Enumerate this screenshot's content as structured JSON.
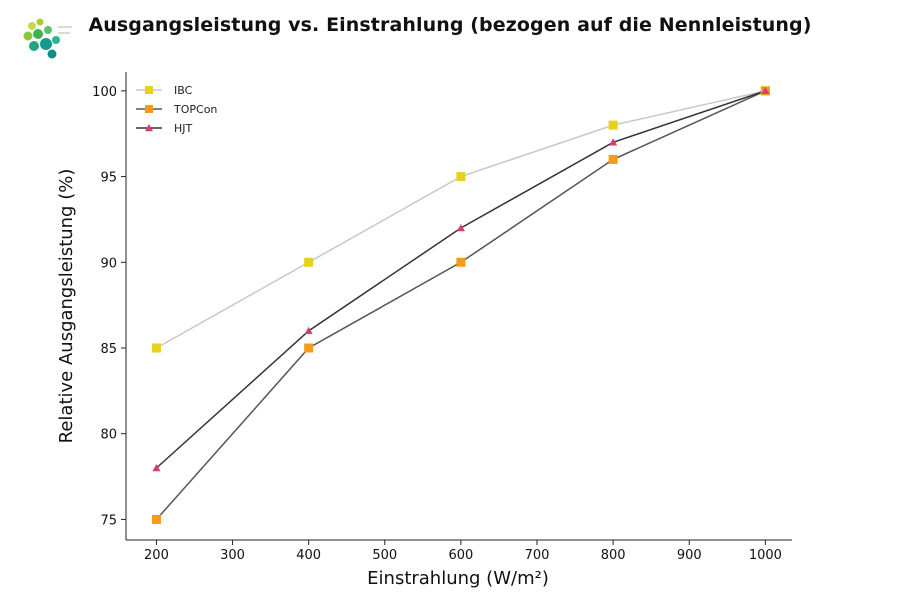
{
  "chart_data": {
    "type": "line",
    "title": "Ausgangsleistung vs. Einstrahlung (bezogen auf die Nennleistung)",
    "xlabel": "Einstrahlung (W/m²)",
    "ylabel": "Relative Ausgangsleistung (%)",
    "x": [
      200,
      400,
      600,
      800,
      1000
    ],
    "x_ticks": [
      200,
      300,
      400,
      500,
      600,
      700,
      800,
      900,
      1000
    ],
    "y_ticks": [
      75,
      80,
      85,
      90,
      95,
      100
    ],
    "xlim": [
      160,
      1035
    ],
    "ylim": [
      73.8,
      101.1
    ],
    "grid": false,
    "legend_position": "top-left",
    "series": [
      {
        "name": "IBC",
        "values": [
          85,
          90,
          95,
          98,
          100
        ],
        "color": "#c8c8c8",
        "marker_color": "#e6d21e",
        "marker": "square"
      },
      {
        "name": "TOPCon",
        "values": [
          75,
          85,
          90,
          96,
          100
        ],
        "color": "#555555",
        "marker_color": "#f59a1c",
        "marker": "square"
      },
      {
        "name": "HJT",
        "values": [
          78,
          86,
          92,
          97,
          100
        ],
        "color": "#333333",
        "marker_color": "#d63a7a",
        "marker": "triangle"
      }
    ]
  }
}
